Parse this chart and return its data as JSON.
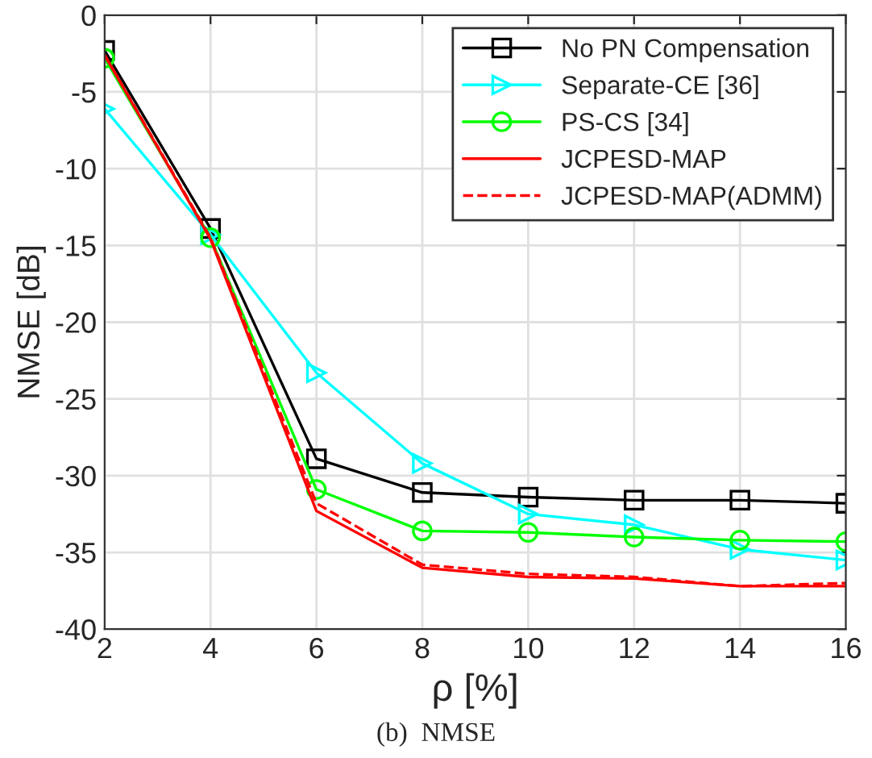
{
  "chart_data": {
    "type": "line",
    "xlabel": "ρ [%]",
    "ylabel": "NMSE [dB]",
    "x": [
      2,
      4,
      6,
      8,
      10,
      12,
      14,
      16
    ],
    "xlim": [
      2,
      16
    ],
    "xticks": [
      2,
      4,
      6,
      8,
      10,
      12,
      14,
      16
    ],
    "ylim": [
      -40,
      0
    ],
    "yticks": [
      -40,
      -35,
      -30,
      -25,
      -20,
      -15,
      -10,
      -5,
      0
    ],
    "grid": true,
    "legend": "top right",
    "annotations": [
      "(b)  NMSE"
    ],
    "series": [
      {
        "name": "No PN Compensation",
        "color": "#000000",
        "marker": "square",
        "line_style": "solid",
        "values": [
          -2.3,
          -13.9,
          -28.9,
          -31.1,
          -31.4,
          -31.6,
          -31.6,
          -31.8
        ]
      },
      {
        "name": "Separate-CE [36]",
        "color": "#00ffff",
        "marker": "triangle",
        "line_style": "solid",
        "values": [
          -6.1,
          -14.3,
          -23.3,
          -29.2,
          -32.5,
          -33.2,
          -34.8,
          -35.5
        ]
      },
      {
        "name": "PS-CS [34]",
        "color": "#00ff00",
        "marker": "circle",
        "line_style": "solid",
        "values": [
          -2.8,
          -14.5,
          -30.9,
          -33.6,
          -33.7,
          -34.0,
          -34.2,
          -34.3
        ]
      },
      {
        "name": "JCPESD-MAP",
        "color": "#ff0000",
        "marker": "none",
        "line_style": "solid",
        "values": [
          -2.6,
          -14.6,
          -32.3,
          -36.0,
          -36.6,
          -36.7,
          -37.2,
          -37.2
        ]
      },
      {
        "name": "JCPESD-MAP(ADMM)",
        "color": "#ff0000",
        "marker": "none",
        "line_style": "dashed",
        "values": [
          -2.6,
          -14.5,
          -31.8,
          -35.8,
          -36.4,
          -36.6,
          -37.2,
          -37.0
        ]
      }
    ]
  }
}
